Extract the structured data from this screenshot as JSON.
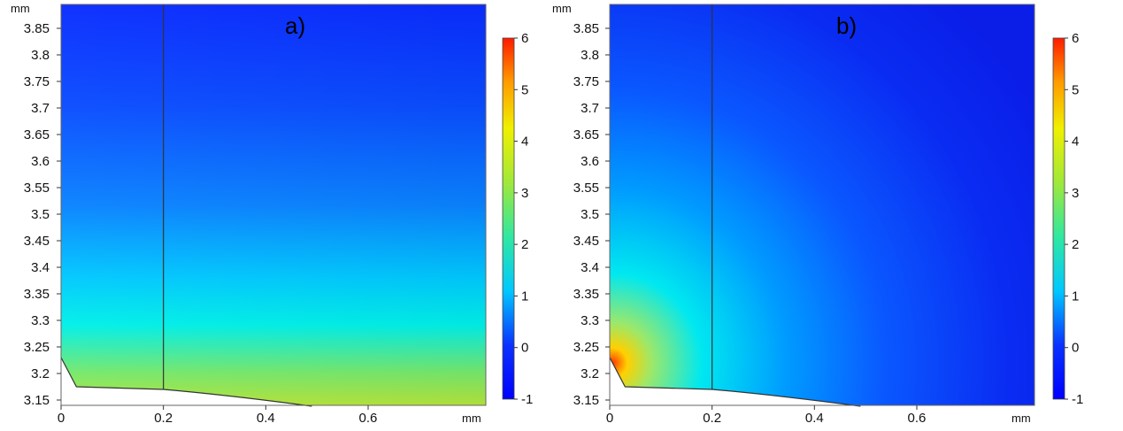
{
  "chart_data": [
    {
      "type": "heatmap",
      "panel_label": "a)",
      "x_unit": "mm",
      "y_unit": "mm",
      "xlim": [
        0,
        0.83
      ],
      "ylim": [
        3.14,
        3.895
      ],
      "x_ticks": [
        "0",
        "0.2",
        "0.4",
        "0.6"
      ],
      "x_tick_values": [
        0,
        0.2,
        0.4,
        0.6
      ],
      "y_ticks": [
        "3.15",
        "3.2",
        "3.25",
        "3.3",
        "3.35",
        "3.4",
        "3.45",
        "3.5",
        "3.55",
        "3.6",
        "3.65",
        "3.7",
        "3.75",
        "3.8",
        "3.85"
      ],
      "y_tick_values": [
        3.15,
        3.2,
        3.25,
        3.3,
        3.35,
        3.4,
        3.45,
        3.5,
        3.55,
        3.6,
        3.65,
        3.7,
        3.75,
        3.8,
        3.85
      ],
      "divider_x": 0.2,
      "boundary": [
        [
          0,
          3.23
        ],
        [
          0.03,
          3.175
        ],
        [
          0.2,
          3.17
        ],
        [
          0.49,
          3.14
        ]
      ],
      "colorbar": {
        "min": -1,
        "max": 6,
        "ticks": [
          "6",
          "5",
          "4",
          "3",
          "2",
          "1",
          "0",
          "-1"
        ],
        "tick_values": [
          6,
          5,
          4,
          3,
          2,
          1,
          0,
          -1
        ]
      }
    },
    {
      "type": "heatmap",
      "panel_label": "b)",
      "x_unit": "mm",
      "y_unit": "mm",
      "xlim": [
        0,
        0.83
      ],
      "ylim": [
        3.14,
        3.895
      ],
      "x_ticks": [
        "0",
        "0.2",
        "0.4",
        "0.6"
      ],
      "x_tick_values": [
        0,
        0.2,
        0.4,
        0.6
      ],
      "y_ticks": [
        "3.15",
        "3.2",
        "3.25",
        "3.3",
        "3.35",
        "3.4",
        "3.45",
        "3.5",
        "3.55",
        "3.6",
        "3.65",
        "3.7",
        "3.75",
        "3.8",
        "3.85"
      ],
      "y_tick_values": [
        3.15,
        3.2,
        3.25,
        3.3,
        3.35,
        3.4,
        3.45,
        3.5,
        3.55,
        3.6,
        3.65,
        3.7,
        3.75,
        3.8,
        3.85
      ],
      "divider_x": 0.2,
      "boundary": [
        [
          0,
          3.23
        ],
        [
          0.03,
          3.175
        ],
        [
          0.2,
          3.17
        ],
        [
          0.49,
          3.14
        ]
      ],
      "colorbar": {
        "min": -1,
        "max": 6,
        "ticks": [
          "6",
          "5",
          "4",
          "3",
          "2",
          "1",
          "0",
          "-1"
        ],
        "tick_values": [
          6,
          5,
          4,
          3,
          2,
          1,
          0,
          -1
        ]
      }
    }
  ]
}
